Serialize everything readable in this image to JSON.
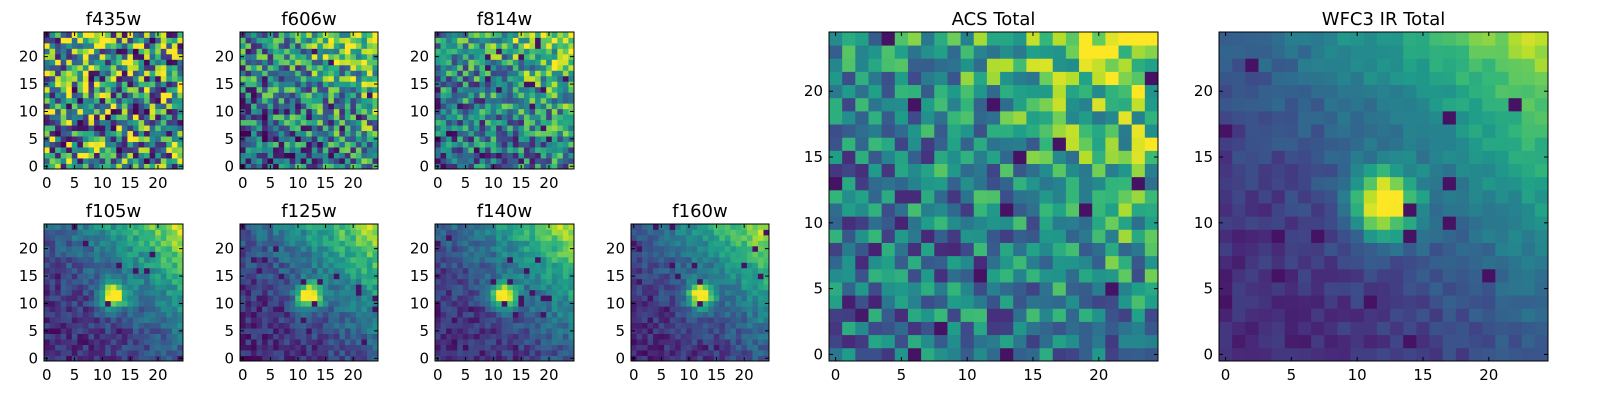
{
  "figure": {
    "background": "#ffffff"
  },
  "chart_data": [
    {
      "id": "f435w",
      "type": "heatmap",
      "title": "f435w",
      "grid_size": [
        25,
        25
      ],
      "xlim": [
        0,
        24
      ],
      "ylim": [
        0,
        24
      ],
      "xticks": [
        "0",
        "5",
        "10",
        "15",
        "20"
      ],
      "yticks": [
        "0",
        "5",
        "10",
        "15",
        "20"
      ],
      "colormap": "viridis",
      "pattern": "noise",
      "source": {
        "noise": 0.55
      },
      "seed": 11
    },
    {
      "id": "f606w",
      "type": "heatmap",
      "title": "f606w",
      "grid_size": [
        25,
        25
      ],
      "xlim": [
        0,
        24
      ],
      "ylim": [
        0,
        24
      ],
      "xticks": [
        "0",
        "5",
        "10",
        "15",
        "20"
      ],
      "yticks": [
        "0",
        "5",
        "10",
        "15",
        "20"
      ],
      "colormap": "viridis",
      "pattern": "noise-gradient",
      "source": {
        "noise": 0.4
      },
      "seed": 23
    },
    {
      "id": "f814w",
      "type": "heatmap",
      "title": "f814w",
      "grid_size": [
        25,
        25
      ],
      "xlim": [
        0,
        24
      ],
      "ylim": [
        0,
        24
      ],
      "xticks": [
        "0",
        "5",
        "10",
        "15",
        "20"
      ],
      "yticks": [
        "0",
        "5",
        "10",
        "15",
        "20"
      ],
      "colormap": "viridis",
      "pattern": "noise-gradient",
      "source": {
        "noise": 0.35
      },
      "seed": 37
    },
    {
      "id": "f105w",
      "type": "heatmap",
      "title": "f105w",
      "grid_size": [
        25,
        25
      ],
      "xlim": [
        0,
        24
      ],
      "ylim": [
        0,
        24
      ],
      "xticks": [
        "0",
        "5",
        "10",
        "15",
        "20"
      ],
      "yticks": [
        "0",
        "5",
        "10",
        "15",
        "20"
      ],
      "colormap": "viridis",
      "pattern": "source-gradient",
      "source": {
        "x": 12,
        "y": 11.5,
        "sigma": 1.6,
        "noise": 0.12
      },
      "seed": 41
    },
    {
      "id": "f125w",
      "type": "heatmap",
      "title": "f125w",
      "grid_size": [
        25,
        25
      ],
      "xlim": [
        0,
        24
      ],
      "ylim": [
        0,
        24
      ],
      "xticks": [
        "0",
        "5",
        "10",
        "15",
        "20"
      ],
      "yticks": [
        "0",
        "5",
        "10",
        "15",
        "20"
      ],
      "colormap": "viridis",
      "pattern": "source-gradient",
      "source": {
        "x": 12,
        "y": 11.5,
        "sigma": 1.6,
        "noise": 0.12
      },
      "seed": 53
    },
    {
      "id": "f140w",
      "type": "heatmap",
      "title": "f140w",
      "grid_size": [
        25,
        25
      ],
      "xlim": [
        0,
        24
      ],
      "ylim": [
        0,
        24
      ],
      "xticks": [
        "0",
        "5",
        "10",
        "15",
        "20"
      ],
      "yticks": [
        "0",
        "5",
        "10",
        "15",
        "20"
      ],
      "colormap": "viridis",
      "pattern": "source-gradient",
      "source": {
        "x": 12,
        "y": 11.5,
        "sigma": 1.6,
        "noise": 0.11
      },
      "seed": 67
    },
    {
      "id": "f160w",
      "type": "heatmap",
      "title": "f160w",
      "grid_size": [
        25,
        25
      ],
      "xlim": [
        0,
        24
      ],
      "ylim": [
        0,
        24
      ],
      "xticks": [
        "0",
        "5",
        "10",
        "15",
        "20"
      ],
      "yticks": [
        "0",
        "5",
        "10",
        "15",
        "20"
      ],
      "colormap": "viridis",
      "pattern": "source-gradient",
      "source": {
        "x": 12,
        "y": 11.5,
        "sigma": 1.6,
        "noise": 0.1
      },
      "seed": 79
    },
    {
      "id": "acs-total",
      "type": "heatmap",
      "title": "ACS Total",
      "grid_size": [
        25,
        25
      ],
      "xlim": [
        0,
        24
      ],
      "ylim": [
        0,
        24
      ],
      "xticks": [
        "0",
        "5",
        "10",
        "15",
        "20"
      ],
      "yticks": [
        "0",
        "5",
        "10",
        "15",
        "20"
      ],
      "colormap": "viridis",
      "pattern": "noise-gradient",
      "source": {
        "noise": 0.3
      },
      "seed": 97
    },
    {
      "id": "wfc3-ir-total",
      "type": "heatmap",
      "title": "WFC3 IR Total",
      "grid_size": [
        25,
        25
      ],
      "xlim": [
        0,
        24
      ],
      "ylim": [
        0,
        24
      ],
      "xticks": [
        "0",
        "5",
        "10",
        "15",
        "20"
      ],
      "yticks": [
        "0",
        "5",
        "10",
        "15",
        "20"
      ],
      "colormap": "viridis",
      "pattern": "source-gradient",
      "source": {
        "x": 12,
        "y": 11.5,
        "sigma": 1.7,
        "noise": 0.06
      },
      "seed": 113
    }
  ]
}
